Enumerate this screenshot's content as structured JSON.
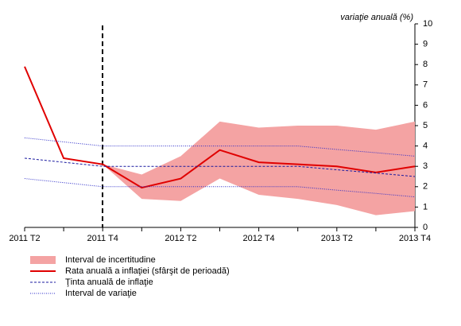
{
  "chart_data": {
    "type": "line",
    "y_label": "variaţie anuală (%)",
    "categories": [
      "2011 T2",
      null,
      "2011 T4",
      null,
      "2012 T2",
      null,
      "2012 T4",
      null,
      "2013 T2",
      null,
      "2013 T4"
    ],
    "ylim": [
      0,
      10
    ],
    "yticks": [
      0,
      1,
      2,
      3,
      4,
      5,
      6,
      7,
      8,
      9,
      10
    ],
    "series": [
      {
        "name": "Interval de incertitudine",
        "type": "band",
        "color": "#f4a3a3",
        "upper": [
          null,
          null,
          3.1,
          2.6,
          3.5,
          5.2,
          4.9,
          5.0,
          5.0,
          4.8,
          5.2
        ],
        "lower": [
          null,
          null,
          3.1,
          1.4,
          1.3,
          2.4,
          1.6,
          1.4,
          1.1,
          0.6,
          0.8
        ]
      },
      {
        "name": "Rata anuală a inflaţiei (sfârşit de perioadă)",
        "type": "line",
        "color": "#e00000",
        "values": [
          7.9,
          3.4,
          3.1,
          1.95,
          2.4,
          3.8,
          3.2,
          3.1,
          3.0,
          2.7,
          3.0
        ]
      },
      {
        "name": "Ţinta anuală de inflaţie",
        "type": "dashed",
        "color": "#1a1aa0",
        "values": [
          3.4,
          3.2,
          3.0,
          3.0,
          3.0,
          3.0,
          3.0,
          3.0,
          2.83,
          2.67,
          2.5
        ]
      },
      {
        "name": "Interval de variaţie",
        "type": "dotted",
        "color": "#2a2ac8",
        "upper": [
          4.4,
          4.2,
          4.0,
          4.0,
          4.0,
          4.0,
          4.0,
          4.0,
          3.83,
          3.67,
          3.5
        ],
        "lower": [
          2.4,
          2.2,
          2.0,
          2.0,
          2.0,
          2.0,
          2.0,
          2.0,
          1.83,
          1.67,
          1.5
        ]
      }
    ]
  }
}
